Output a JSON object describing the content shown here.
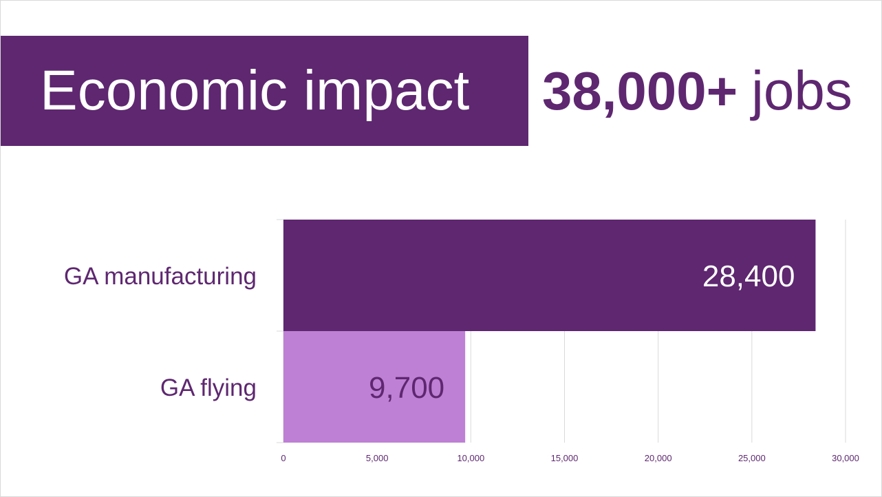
{
  "header": {
    "title": "Economic impact",
    "stat_number": "38,000+",
    "stat_unit": "jobs"
  },
  "colors": {
    "primary_purple": "#5e2770",
    "light_purple": "#be80d4",
    "gridline": "#d9d9d9",
    "axis_text": "#5e2770"
  },
  "chart_data": {
    "type": "bar",
    "orientation": "horizontal",
    "categories": [
      "GA manufacturing",
      "GA flying"
    ],
    "values": [
      28400,
      9700
    ],
    "value_labels": [
      "28,400",
      "9,700"
    ],
    "bar_colors": [
      "#5e2770",
      "#be80d4"
    ],
    "label_colors": [
      "#ffffff",
      "#5e2770"
    ],
    "xlim": [
      0,
      30000
    ],
    "xticks": [
      0,
      5000,
      10000,
      15000,
      20000,
      25000,
      30000
    ],
    "xtick_labels": [
      "0",
      "5,000",
      "10,000",
      "15,000",
      "20,000",
      "25,000",
      "30,000"
    ],
    "grid": true,
    "legend": false,
    "title": "",
    "xlabel": "",
    "ylabel": ""
  }
}
